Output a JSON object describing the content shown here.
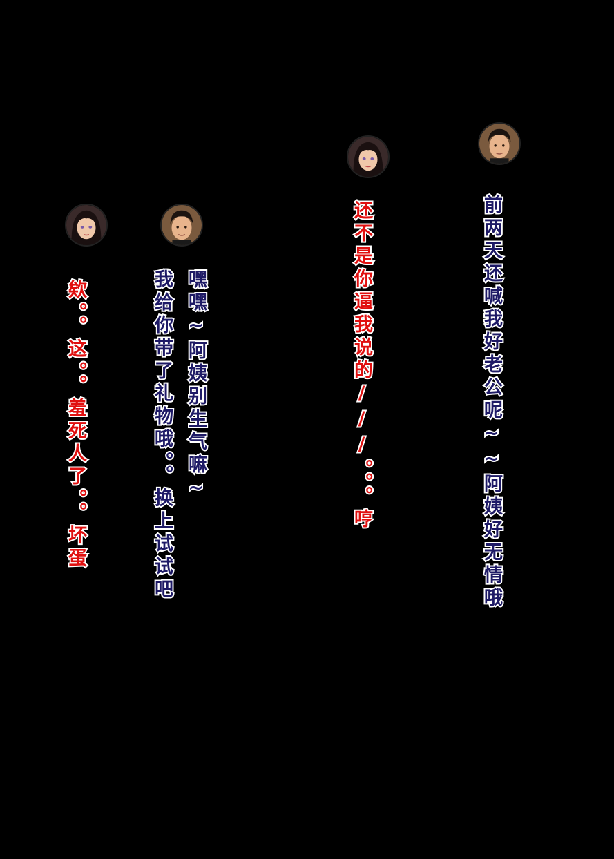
{
  "colors": {
    "background": "#000000",
    "male_text": "#1e1a66",
    "female_text": "#e01010"
  },
  "bubbles": [
    {
      "speaker": "male-avatar",
      "lines": [
        "前两天还喊我好老公呢~~阿姨好无情哦"
      ]
    },
    {
      "speaker": "female-avatar",
      "lines": [
        "还不是你逼我说的///。。。哼"
      ]
    },
    {
      "speaker": "male-avatar",
      "lines": [
        "嘿嘿~阿姨别生气嘛~",
        "我给你带了礼物哦。。换上试试吧"
      ]
    },
    {
      "speaker": "female-avatar",
      "lines": [
        "欸。。这。。羞死人了。。坏蛋"
      ]
    }
  ]
}
